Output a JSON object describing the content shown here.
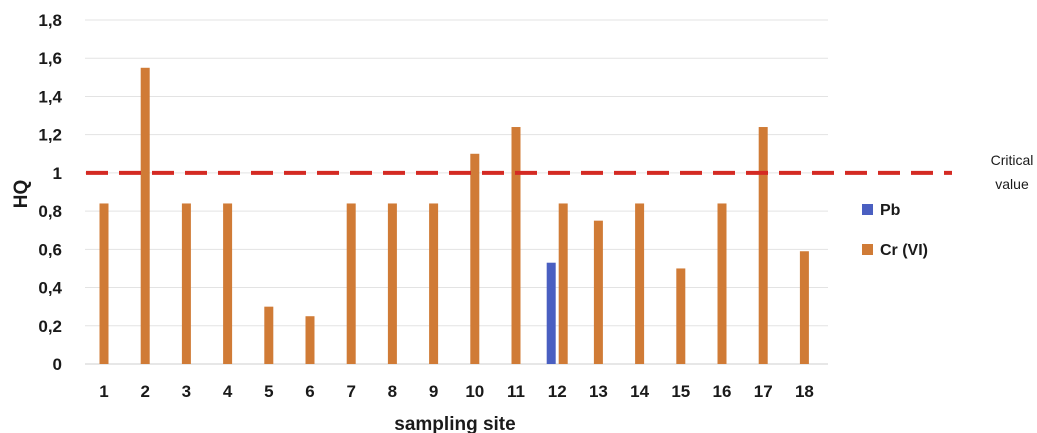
{
  "chart_data": {
    "type": "bar",
    "xlabel": "sampling site",
    "ylabel": "HQ",
    "ylim": [
      0,
      1.8
    ],
    "y_ticks": [
      "0",
      "0,2",
      "0,4",
      "0,6",
      "0,8",
      "1",
      "1,2",
      "1,4",
      "1,6",
      "1,8"
    ],
    "grid": true,
    "legend_position": "right",
    "categories": [
      "1",
      "2",
      "3",
      "4",
      "5",
      "6",
      "7",
      "8",
      "9",
      "10",
      "11",
      "12",
      "13",
      "14",
      "15",
      "16",
      "17",
      "18"
    ],
    "series": [
      {
        "name": "Pb",
        "color": "#4a5fc1",
        "values": [
          null,
          null,
          null,
          null,
          null,
          null,
          null,
          null,
          null,
          null,
          null,
          0.53,
          null,
          null,
          null,
          null,
          null,
          null
        ]
      },
      {
        "name": "Cr (VI)",
        "color": "#d07b36",
        "values": [
          0.84,
          1.55,
          0.84,
          0.84,
          0.3,
          0.25,
          0.84,
          0.84,
          0.84,
          1.1,
          1.24,
          0.84,
          0.75,
          0.84,
          0.5,
          0.84,
          1.24,
          0.59
        ]
      }
    ],
    "reference_line": {
      "value": 1,
      "color": "#d42a23",
      "style": "dashed",
      "label_lines": [
        "Critical",
        "value"
      ]
    }
  }
}
